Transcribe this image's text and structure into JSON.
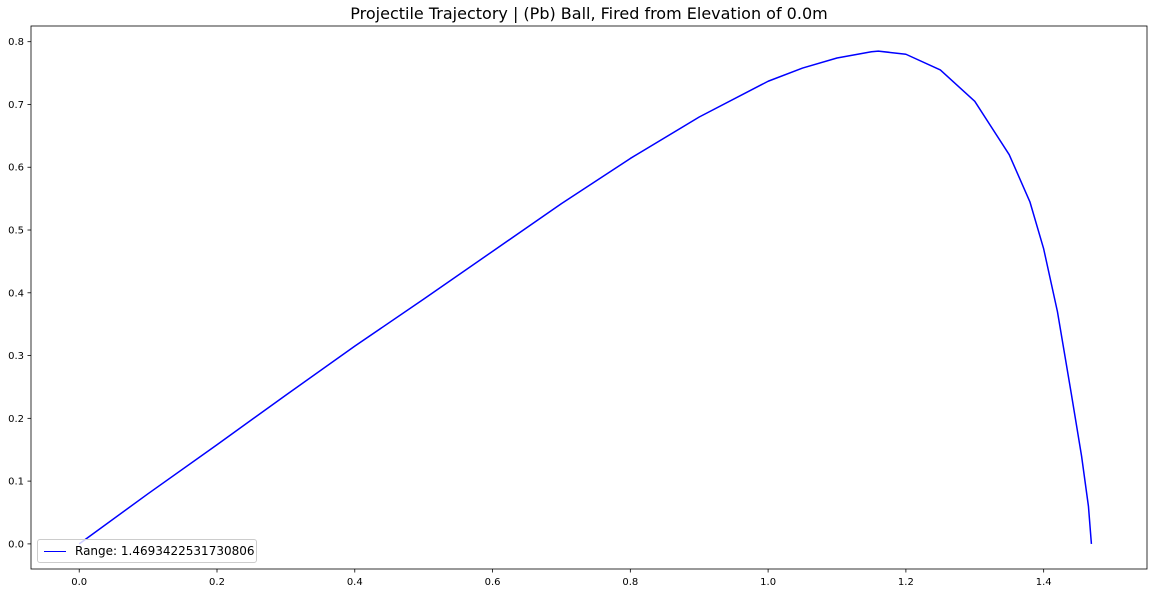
{
  "chart_data": {
    "type": "line",
    "title": "Projectile Trajectory | (Pb) Ball, Fired from Elevation of 0.0m",
    "xlabel": "",
    "ylabel": "",
    "xlim": [
      -0.07,
      1.55
    ],
    "ylim": [
      -0.04,
      0.825
    ],
    "x_ticks": [
      0.0,
      0.2,
      0.4,
      0.6,
      0.8,
      1.0,
      1.2,
      1.4
    ],
    "x_tick_labels": [
      "0.0",
      "0.2",
      "0.4",
      "0.6",
      "0.8",
      "1.0",
      "1.2",
      "1.4"
    ],
    "y_ticks": [
      0.0,
      0.1,
      0.2,
      0.3,
      0.4,
      0.5,
      0.6,
      0.7,
      0.8
    ],
    "y_tick_labels": [
      "0.0",
      "0.1",
      "0.2",
      "0.3",
      "0.4",
      "0.5",
      "0.6",
      "0.7",
      "0.8"
    ],
    "grid": false,
    "legend_position": "lower-left",
    "series": [
      {
        "name": "Range: 1.4693422531730806",
        "color": "#0000ff",
        "x": [
          0.0,
          0.1,
          0.2,
          0.3,
          0.4,
          0.5,
          0.6,
          0.7,
          0.8,
          0.9,
          1.0,
          1.05,
          1.1,
          1.15,
          1.16,
          1.2,
          1.25,
          1.3,
          1.35,
          1.38,
          1.4,
          1.42,
          1.44,
          1.455,
          1.465,
          1.4693
        ],
        "y": [
          0.0,
          0.08,
          0.158,
          0.237,
          0.315,
          0.39,
          0.466,
          0.542,
          0.614,
          0.68,
          0.737,
          0.758,
          0.774,
          0.784,
          0.785,
          0.78,
          0.755,
          0.705,
          0.62,
          0.545,
          0.47,
          0.37,
          0.24,
          0.14,
          0.06,
          0.0
        ]
      }
    ]
  }
}
